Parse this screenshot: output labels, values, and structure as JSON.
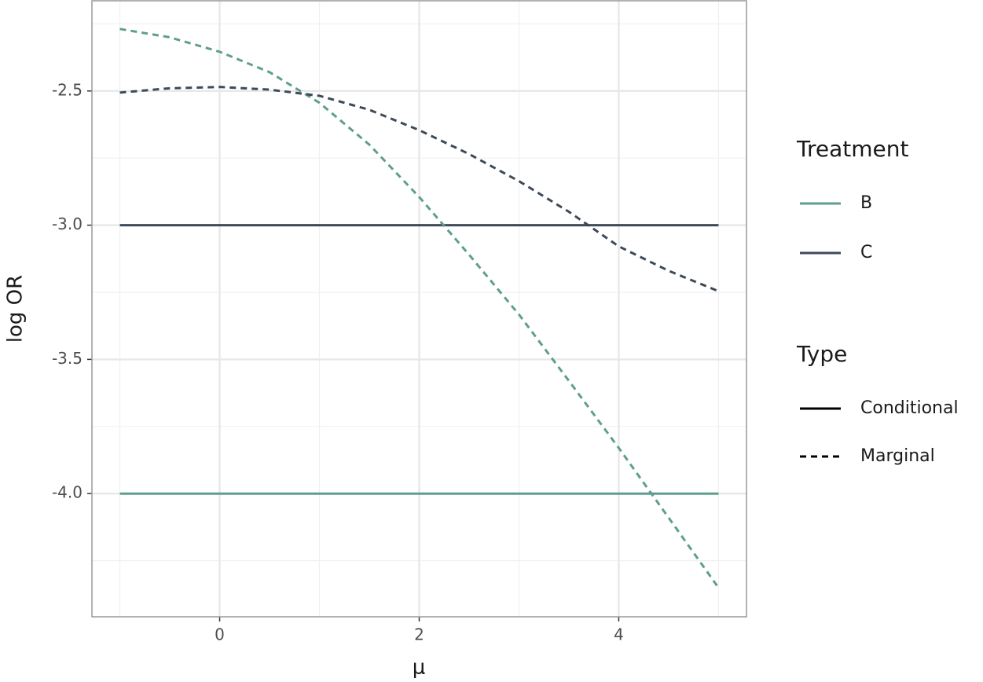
{
  "chart_data": {
    "type": "line",
    "x_label": "μ",
    "y_label": "log OR",
    "x": [
      -1,
      -0.5,
      0,
      0.5,
      1,
      1.5,
      2,
      2.5,
      3,
      3.5,
      4,
      4.5,
      5
    ],
    "series": [
      {
        "treatment": "B",
        "type": "Conditional",
        "values": [
          -4.0,
          -4.0,
          -4.0,
          -4.0,
          -4.0,
          -4.0,
          -4.0,
          -4.0,
          -4.0,
          -4.0,
          -4.0,
          -4.0,
          -4.0
        ]
      },
      {
        "treatment": "C",
        "type": "Conditional",
        "values": [
          -3.0,
          -3.0,
          -3.0,
          -3.0,
          -3.0,
          -3.0,
          -3.0,
          -3.0,
          -3.0,
          -3.0,
          -3.0,
          -3.0,
          -3.0
        ]
      },
      {
        "treatment": "B",
        "type": "Marginal",
        "values": [
          -2.269,
          -2.3,
          -2.354,
          -2.43,
          -2.544,
          -2.7,
          -2.895,
          -3.11,
          -3.333,
          -3.58,
          -3.83,
          -4.09,
          -4.351
        ]
      },
      {
        "treatment": "C",
        "type": "Marginal",
        "values": [
          -2.506,
          -2.49,
          -2.485,
          -2.495,
          -2.518,
          -2.57,
          -2.646,
          -2.735,
          -2.836,
          -2.95,
          -3.079,
          -3.17,
          -3.246
        ]
      }
    ],
    "legend": {
      "treatment": {
        "title": "Treatment",
        "items": [
          {
            "name": "B",
            "color": "#5f9e8f"
          },
          {
            "name": "C",
            "color": "#3d4a57"
          }
        ]
      },
      "type": {
        "title": "Type",
        "items": [
          {
            "name": "Conditional",
            "dash": "solid"
          },
          {
            "name": "Marginal",
            "dash": "dashed"
          }
        ]
      }
    },
    "xlim": [
      -1.28,
      5.28
    ],
    "ylim": [
      -4.459,
      -2.164
    ],
    "xticks": [
      0,
      2,
      4
    ],
    "yticks": [
      -2.5,
      {
        "value": -3.0,
        "label": "-3.0"
      },
      -3.5,
      {
        "value": -4.0,
        "label": "-4.0"
      }
    ],
    "minor_xticks": [
      -1,
      1,
      3,
      5
    ],
    "minor_yticks": [
      -2.25,
      -2.75,
      -3.25,
      -3.75,
      -4.25
    ],
    "grid": true
  }
}
